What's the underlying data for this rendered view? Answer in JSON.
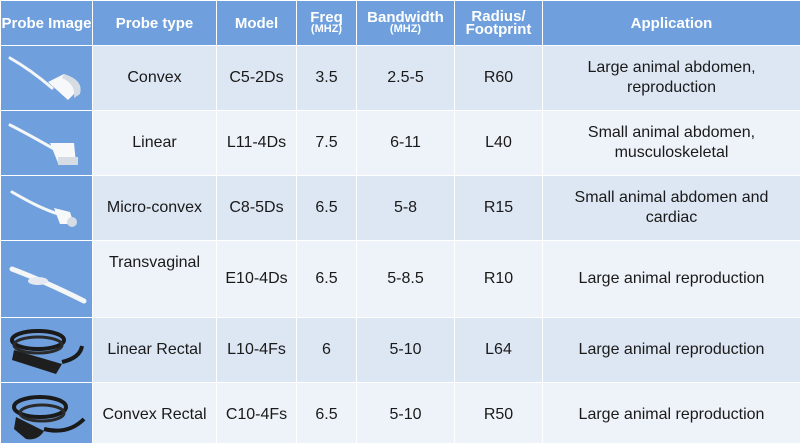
{
  "headers": {
    "image": "Probe Image",
    "type": "Probe type",
    "model": "Model",
    "freq": "Freq",
    "freq_unit": "(MHZ)",
    "bandwidth": "Bandwidth",
    "bandwidth_unit": "(MHZ)",
    "radius": "Radius/ Footprint",
    "application": "Application"
  },
  "rows": [
    {
      "type": "Convex",
      "model": "C5-2Ds",
      "freq": "3.5",
      "bandwidth": "2.5-5",
      "radius": "R60",
      "application": "Large animal abdomen, reproduction",
      "icon": "convex-probe-icon"
    },
    {
      "type": "Linear",
      "model": "L11-4Ds",
      "freq": "7.5",
      "bandwidth": "6-11",
      "radius": "L40",
      "application": "Small animal abdomen, musculoskeletal",
      "icon": "linear-probe-icon"
    },
    {
      "type": "Micro-convex",
      "model": "C8-5Ds",
      "freq": "6.5",
      "bandwidth": "5-8",
      "radius": "R15",
      "application": "Small animal abdomen and cardiac",
      "icon": "micro-convex-probe-icon"
    },
    {
      "type": "Transvaginal",
      "model": "E10-4Ds",
      "freq": "6.5",
      "bandwidth": "5-8.5",
      "radius": "R10",
      "application": "Large animal reproduction",
      "icon": "transvaginal-probe-icon"
    },
    {
      "type": "Linear Rectal",
      "model": "L10-4Fs",
      "freq": "6",
      "bandwidth": "5-10",
      "radius": "L64",
      "application": "Large animal reproduction",
      "icon": "linear-rectal-probe-icon"
    },
    {
      "type": "Convex Rectal",
      "model": "C10-4Fs",
      "freq": "6.5",
      "bandwidth": "5-10",
      "radius": "R50",
      "application": "Large animal reproduction",
      "icon": "convex-rectal-probe-icon"
    }
  ]
}
